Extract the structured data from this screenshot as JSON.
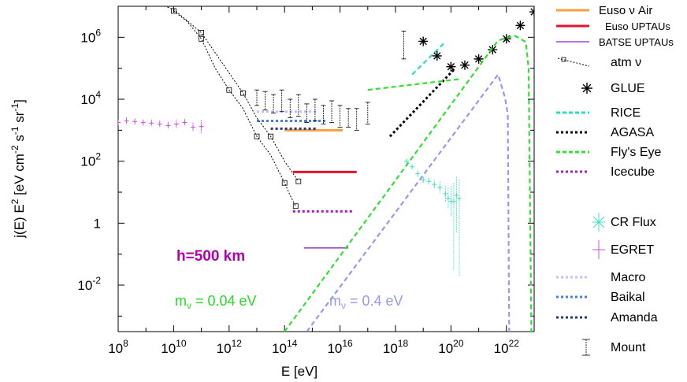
{
  "chart_data": {
    "type": "scatter",
    "title": "",
    "xlabel": "E [eV]",
    "ylabel": "j(E) E² [eV cm⁻² s⁻¹ sr⁻¹]",
    "xscale": "log",
    "yscale": "log",
    "xlim_log10": [
      8,
      23
    ],
    "ylim_log10": [
      -3.5,
      7
    ],
    "x_ticks": [
      {
        "exp": 8,
        "label": "10^8"
      },
      {
        "exp": 10,
        "label": "10^10"
      },
      {
        "exp": 12,
        "label": "10^12"
      },
      {
        "exp": 14,
        "label": "10^14"
      },
      {
        "exp": 16,
        "label": "10^16"
      },
      {
        "exp": 18,
        "label": "10^18"
      },
      {
        "exp": 20,
        "label": "10^20"
      },
      {
        "exp": 22,
        "label": "10^22"
      }
    ],
    "y_ticks": [
      {
        "exp": 6,
        "base": "10",
        "power": "6"
      },
      {
        "exp": 4,
        "base": "10",
        "power": "4"
      },
      {
        "exp": 2,
        "base": "10",
        "power": "2"
      },
      {
        "exp": 0,
        "base": "1",
        "power": ""
      },
      {
        "exp": -2,
        "base": "10",
        "power": "-2"
      }
    ],
    "annotations": {
      "height": "h=500 km",
      "mass_green": "m",
      "mass_green_sub": "ν",
      "mass_green_val": " = 0.04 eV",
      "mass_blue": "m",
      "mass_blue_sub": "ν",
      "mass_blue_val": " = 0.4 eV"
    },
    "legend": [
      {
        "label": "Euso  ν Air",
        "color": "#f4a040"
      },
      {
        "label": "Euso UPTAUs",
        "color": "#e8102a"
      },
      {
        "label": "BATSE UPTAUs",
        "color": "#8a1fd0"
      },
      {
        "label": "atm ν",
        "color": "#000000"
      },
      {
        "label": "GLUE",
        "color": "#000000"
      },
      {
        "label": "RICE",
        "color": "#26e0c0"
      },
      {
        "label": "AGASA",
        "color": "#000000"
      },
      {
        "label": "Fly's Eye",
        "color": "#30e030"
      },
      {
        "label": "Icecube",
        "color": "#a020c0"
      },
      {
        "label": "CR Flux",
        "color": "#40e0c0"
      },
      {
        "label": "EGRET",
        "color": "#d050e0"
      },
      {
        "label": "Macro",
        "color": "#c0c0ff"
      },
      {
        "label": "Baikal",
        "color": "#4080e0"
      },
      {
        "label": "Amanda",
        "color": "#203880"
      },
      {
        "label": "Mount",
        "color": "#000000"
      }
    ],
    "series": [
      {
        "name": "Euso  ν Air",
        "kind": "hline",
        "color": "#f4a040",
        "x": [
          14.0,
          16.1
        ],
        "y": 3.0
      },
      {
        "name": "Euso UPTAUs",
        "kind": "hline",
        "color": "#e8102a",
        "x": [
          14.3,
          16.6
        ],
        "y": 1.65
      },
      {
        "name": "BATSE UPTAUs",
        "kind": "hline",
        "color": "#8a1fd0",
        "x": [
          14.7,
          16.3
        ],
        "y": -0.8
      },
      {
        "name": "Macro",
        "kind": "dotted",
        "color": "#c0c0ff",
        "x": [
          13.0,
          15.2
        ],
        "y": 3.6
      },
      {
        "name": "Baikal",
        "kind": "dotted",
        "color": "#4080e0",
        "x": [
          13.0,
          15.5
        ],
        "y": 3.3
      },
      {
        "name": "Amanda",
        "kind": "dotted",
        "color": "#203880",
        "x": [
          13.5,
          15.2
        ],
        "y": 3.05
      },
      {
        "name": "Icecube",
        "kind": "dotted",
        "color": "#a020c0",
        "x": [
          14.3,
          16.5
        ],
        "y": 0.38
      },
      {
        "name": "AGASA",
        "kind": "dottedline",
        "color": "#000000",
        "x": [
          17.8,
          20.1
        ],
        "y": [
          2.8,
          4.95
        ]
      },
      {
        "name": "RICE",
        "kind": "dashedline",
        "color": "#26e0c0",
        "x": [
          18.6,
          19.8
        ],
        "y": [
          4.8,
          5.85
        ]
      },
      {
        "name": "Fly's Eye",
        "kind": "dashedline",
        "color": "#30e030",
        "x": [
          17.0,
          20.3
        ],
        "y": [
          4.3,
          4.65
        ]
      },
      {
        "name": "GLUE",
        "kind": "points",
        "color": "#000000",
        "x": [
          19.0,
          19.5,
          20.0,
          20.5,
          21.0,
          21.5,
          22.0,
          22.5,
          23.0
        ],
        "y": [
          5.87,
          5.4,
          5.05,
          5.1,
          5.3,
          5.6,
          5.95,
          6.38,
          6.82
        ]
      },
      {
        "name": "atm ν",
        "kind": "dottedline",
        "color": "#000000",
        "x": [
          10.0,
          10.5,
          11.0,
          11.5,
          12.0,
          12.5,
          13.0,
          13.5,
          14.0,
          14.2,
          14.4
        ],
        "y": [
          6.85,
          6.5,
          5.95,
          5.0,
          4.3,
          3.7,
          2.8,
          2.2,
          1.3,
          0.9,
          0.55
        ]
      },
      {
        "name": "atm ν (upper)",
        "kind": "dottedline",
        "color": "#000000",
        "x": [
          8.5,
          10.0,
          11.0,
          11.5,
          12.5,
          13.0,
          13.5,
          14.0,
          14.5
        ],
        "y": [
          7.4,
          6.9,
          6.15,
          5.5,
          4.2,
          3.4,
          2.8,
          2.0,
          1.35
        ]
      },
      {
        "name": "Mount",
        "kind": "errbars",
        "color": "#000000",
        "x": [
          13.0,
          13.3,
          13.6,
          13.9,
          14.2,
          14.5,
          14.8,
          15.1,
          15.4,
          15.7,
          16.0,
          16.3,
          16.6,
          17.0,
          18.3
        ],
        "y": [
          4.05,
          3.95,
          3.85,
          3.95,
          3.7,
          3.8,
          3.55,
          3.65,
          3.5,
          3.6,
          3.45,
          3.4,
          3.35,
          3.55,
          5.75
        ],
        "err": [
          0.25,
          0.3,
          0.3,
          0.35,
          0.3,
          0.35,
          0.3,
          0.35,
          0.3,
          0.35,
          0.35,
          0.3,
          0.35,
          0.35,
          0.45
        ]
      },
      {
        "name": "EGRET",
        "kind": "errpoints",
        "color": "#d050e0",
        "x": [
          8.0,
          8.3,
          8.6,
          8.9,
          9.2,
          9.5,
          9.8,
          10.1,
          10.4,
          10.7,
          11.0
        ],
        "y": [
          3.25,
          3.3,
          3.28,
          3.25,
          3.23,
          3.2,
          3.15,
          3.2,
          3.25,
          3.1,
          3.12
        ],
        "err": [
          0.1,
          0.12,
          0.1,
          0.1,
          0.12,
          0.12,
          0.12,
          0.15,
          0.12,
          0.15,
          0.22
        ]
      },
      {
        "name": "CR Flux",
        "kind": "errpoints",
        "color": "#40e0c0",
        "x": [
          18.4,
          18.6,
          18.8,
          19.0,
          19.2,
          19.4,
          19.6,
          19.8,
          19.9,
          20.0,
          20.1,
          20.2,
          20.3
        ],
        "y": [
          2.0,
          1.82,
          1.6,
          1.4,
          1.35,
          1.25,
          1.15,
          0.95,
          0.8,
          0.7,
          0.7,
          0.9,
          0.8
        ],
        "err": [
          0.08,
          0.08,
          0.1,
          0.1,
          0.12,
          0.15,
          0.2,
          0.25,
          0.35,
          0.5,
          2.2,
          1.2,
          2.5
        ]
      },
      {
        "name": "m_ν = 0.04 eV",
        "kind": "dashedline",
        "color": "#30e030",
        "x": [
          14.0,
          21.7,
          22.3,
          22.7,
          22.8,
          22.9
        ],
        "y": [
          -3.5,
          5.9,
          6.05,
          5.85,
          5.0,
          -3.5
        ]
      },
      {
        "name": "m_ν = 0.4 eV",
        "kind": "dashedline",
        "color": "#9898f0",
        "x": [
          14.8,
          21.7,
          21.95,
          22.05,
          22.1
        ],
        "y": [
          -3.5,
          4.8,
          4.05,
          3.5,
          -3.5
        ]
      }
    ]
  }
}
